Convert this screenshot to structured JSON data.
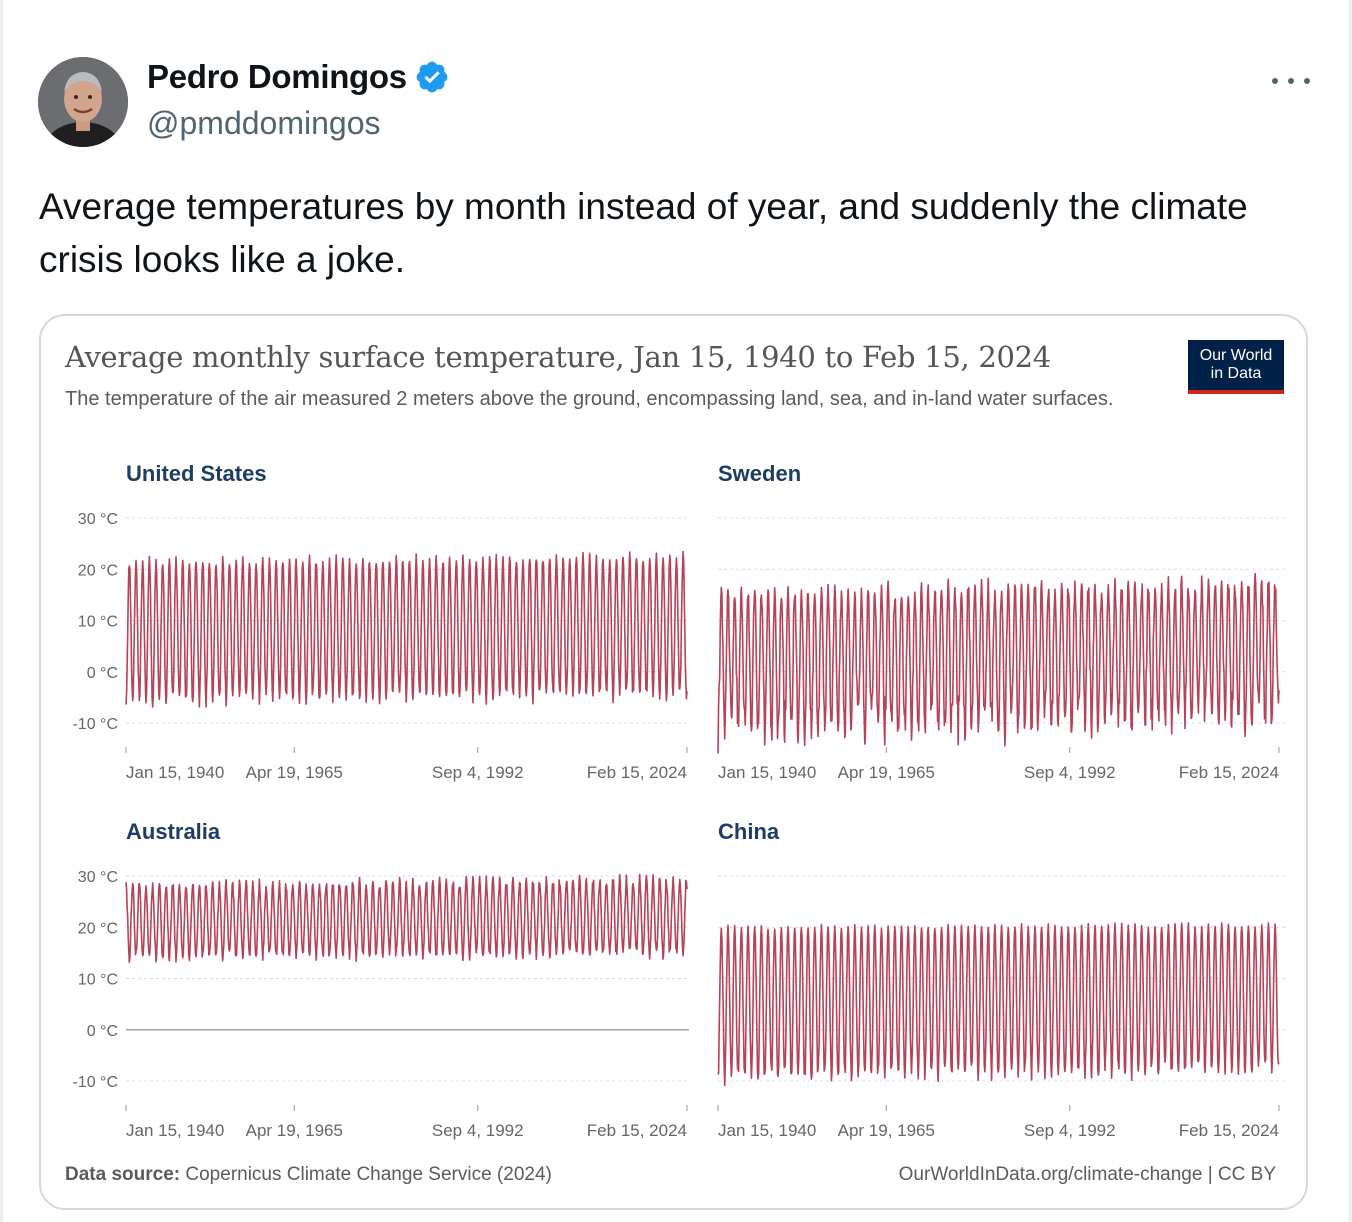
{
  "tweet": {
    "display_name": "Pedro Domingos",
    "handle": "@pmddomingos",
    "verified_icon": "verified-badge-icon",
    "more_icon": "more-dots-icon",
    "text": "Average temperatures by month instead of year, and suddenly the climate crisis looks like a joke."
  },
  "chart": {
    "title": "Average monthly surface temperature, Jan 15, 1940 to Feb 15, 2024",
    "subtitle": "The temperature of the air measured 2 meters above the ground, encompassing land, sea, and in-land water surfaces.",
    "logo_line1": "Our World",
    "logo_line2": "in Data",
    "source_label": "Data source:",
    "source_text": "Copernicus Climate Change Service (2024)",
    "footer_link": "OurWorldInData.org/climate-change | CC BY",
    "line_color": "#b5435a",
    "brand_navy": "#002147",
    "brand_red": "#ce261e"
  },
  "chart_data": [
    {
      "type": "line",
      "title": "United States",
      "y_ticks": [
        "30 °C",
        "20 °C",
        "10 °C",
        "0 °C",
        "-10 °C"
      ],
      "ylim": [
        -10,
        30
      ],
      "x_ticks": [
        "Jan 15, 1940",
        "Apr 19, 1965",
        "Sep 4, 1992",
        "Feb 15, 2024"
      ],
      "show_y_labels": true,
      "series": [
        {
          "monthly_range": {
            "summer_peak": [
              20.5,
              23.5
            ],
            "winter_trough": [
              -7,
              -3
            ]
          },
          "start": "Jan 15, 1940",
          "end": "Feb 15, 2024"
        }
      ]
    },
    {
      "type": "line",
      "title": "Sweden",
      "y_ticks": [
        "30 °C",
        "20 °C",
        "10 °C",
        "0 °C",
        "-10 °C"
      ],
      "ylim": [
        -10,
        30
      ],
      "x_ticks": [
        "Jan 15, 1940",
        "Apr 19, 1965",
        "Sep 4, 1992",
        "Feb 15, 2024"
      ],
      "show_y_labels": false,
      "series": [
        {
          "monthly_range": {
            "summer_peak": [
              13,
              19.5
            ],
            "winter_trough": [
              -16,
              -4
            ]
          },
          "start": "Jan 15, 1940",
          "end": "Feb 15, 2024"
        }
      ]
    },
    {
      "type": "line",
      "title": "Australia",
      "y_ticks": [
        "30 °C",
        "20 °C",
        "10 °C",
        "0 °C",
        "-10 °C"
      ],
      "ylim": [
        -10,
        30
      ],
      "x_ticks": [
        "Jan 15, 1940",
        "Apr 19, 1965",
        "Sep 4, 1992",
        "Feb 15, 2024"
      ],
      "show_y_labels": true,
      "series": [
        {
          "monthly_range": {
            "summer_peak": [
              27,
              30.5
            ],
            "winter_trough": [
              13,
              16
            ]
          },
          "start": "Jan 15, 1940",
          "end": "Feb 15, 2024"
        }
      ]
    },
    {
      "type": "line",
      "title": "China",
      "y_ticks": [
        "30 °C",
        "20 °C",
        "10 °C",
        "0 °C",
        "-10 °C"
      ],
      "ylim": [
        -10,
        30
      ],
      "x_ticks": [
        "Jan 15, 1940",
        "Apr 19, 1965",
        "Sep 4, 1992",
        "Feb 15, 2024"
      ],
      "show_y_labels": false,
      "series": [
        {
          "monthly_range": {
            "summer_peak": [
              19.5,
              21
            ],
            "winter_trough": [
              -11,
              -6
            ]
          },
          "start": "Jan 15, 1940",
          "end": "Feb 15, 2024"
        }
      ]
    }
  ]
}
